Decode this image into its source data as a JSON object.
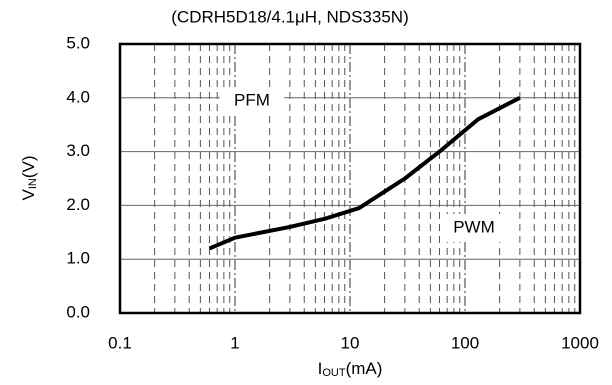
{
  "chart_data": {
    "type": "line",
    "title": "(CDRH5D18/4.1μH, NDS335N)",
    "x_label": {
      "main": "I",
      "sub": "OUT",
      "suffix": "(mA)"
    },
    "y_label": {
      "main": "V",
      "sub": "IN",
      "suffix": "(V)"
    },
    "annotations": [
      "PFM",
      "PWM"
    ],
    "x_scale": "log",
    "x": [
      0.6,
      1,
      3,
      6,
      12,
      30,
      60,
      130,
      300
    ],
    "series": [
      {
        "color": "#000000",
        "values": [
          1.2,
          1.4,
          1.6,
          1.75,
          1.95,
          2.5,
          3.0,
          3.6,
          4.0
        ]
      }
    ],
    "xlim": [
      0.1,
      1000
    ],
    "xticks": [
      0.1,
      1,
      10,
      100,
      1000
    ],
    "ylim": [
      0,
      5
    ],
    "yticks": [
      {
        "value": 0,
        "label": "0.0"
      },
      {
        "value": 1,
        "label": "1.0"
      },
      {
        "value": 2,
        "label": "2.0"
      },
      {
        "value": 3,
        "label": "3.0"
      },
      {
        "value": 4,
        "label": "4.0"
      },
      {
        "value": 5,
        "label": "5.0"
      }
    ],
    "grid": true
  }
}
